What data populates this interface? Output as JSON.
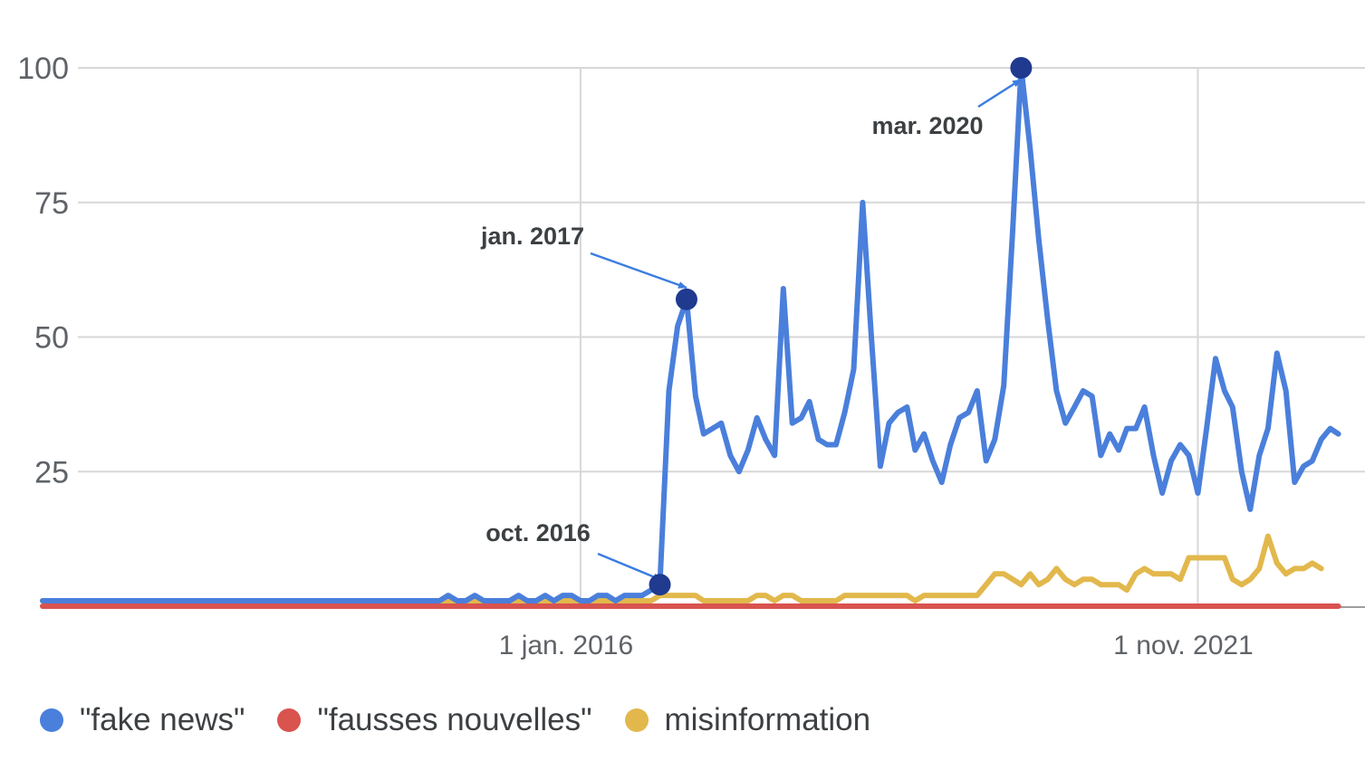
{
  "chart_data": {
    "type": "line",
    "title": "",
    "xlabel": "",
    "ylabel": "",
    "ylim": [
      0,
      100
    ],
    "yticks": [
      25,
      50,
      75,
      100
    ],
    "xlim": [
      "2010-12-01",
      "2023-06-01"
    ],
    "xticks": [
      {
        "date": "2016-01-01",
        "label": "1 jan. 2016"
      },
      {
        "date": "2021-11-01",
        "label": "1 nov. 2021"
      }
    ],
    "grid": true,
    "legend_position": "bottom-left",
    "annotations": [
      {
        "label": "oct. 2016",
        "series": "\"fake news\"",
        "date": "2016-10-01",
        "value": 4
      },
      {
        "label": "jan. 2017",
        "series": "\"fake news\"",
        "date": "2017-01-01",
        "value": 57
      },
      {
        "label": "mar. 2020",
        "series": "\"fake news\"",
        "date": "2020-03-01",
        "value": 100
      }
    ],
    "series": [
      {
        "name": "\"fake news\"",
        "color": "#4a7fdb",
        "points": [
          [
            "2010-12-01",
            1
          ],
          [
            "2014-09-01",
            1
          ],
          [
            "2014-10-01",
            2
          ],
          [
            "2014-11-01",
            1
          ],
          [
            "2014-12-01",
            1
          ],
          [
            "2015-01-01",
            2
          ],
          [
            "2015-02-01",
            1
          ],
          [
            "2015-03-01",
            1
          ],
          [
            "2015-04-01",
            1
          ],
          [
            "2015-05-01",
            1
          ],
          [
            "2015-06-01",
            2
          ],
          [
            "2015-07-01",
            1
          ],
          [
            "2015-08-01",
            1
          ],
          [
            "2015-09-01",
            2
          ],
          [
            "2015-10-01",
            1
          ],
          [
            "2015-11-01",
            2
          ],
          [
            "2015-12-01",
            2
          ],
          [
            "2016-01-01",
            1
          ],
          [
            "2016-02-01",
            1
          ],
          [
            "2016-03-01",
            2
          ],
          [
            "2016-04-01",
            2
          ],
          [
            "2016-05-01",
            1
          ],
          [
            "2016-06-01",
            2
          ],
          [
            "2016-07-01",
            2
          ],
          [
            "2016-08-01",
            2
          ],
          [
            "2016-09-01",
            3
          ],
          [
            "2016-10-01",
            4
          ],
          [
            "2016-11-01",
            40
          ],
          [
            "2016-12-01",
            52
          ],
          [
            "2017-01-01",
            57
          ],
          [
            "2017-02-01",
            39
          ],
          [
            "2017-03-01",
            32
          ],
          [
            "2017-04-01",
            33
          ],
          [
            "2017-05-01",
            34
          ],
          [
            "2017-06-01",
            28
          ],
          [
            "2017-07-01",
            25
          ],
          [
            "2017-08-01",
            29
          ],
          [
            "2017-09-01",
            35
          ],
          [
            "2017-10-01",
            31
          ],
          [
            "2017-11-01",
            28
          ],
          [
            "2017-12-01",
            59
          ],
          [
            "2018-01-01",
            34
          ],
          [
            "2018-02-01",
            35
          ],
          [
            "2018-03-01",
            38
          ],
          [
            "2018-04-01",
            31
          ],
          [
            "2018-05-01",
            30
          ],
          [
            "2018-06-01",
            30
          ],
          [
            "2018-07-01",
            36
          ],
          [
            "2018-08-01",
            44
          ],
          [
            "2018-09-01",
            75
          ],
          [
            "2018-10-01",
            50
          ],
          [
            "2018-11-01",
            26
          ],
          [
            "2018-12-01",
            34
          ],
          [
            "2019-01-01",
            36
          ],
          [
            "2019-02-01",
            37
          ],
          [
            "2019-03-01",
            29
          ],
          [
            "2019-04-01",
            32
          ],
          [
            "2019-05-01",
            27
          ],
          [
            "2019-06-01",
            23
          ],
          [
            "2019-07-01",
            30
          ],
          [
            "2019-08-01",
            35
          ],
          [
            "2019-09-01",
            36
          ],
          [
            "2019-10-01",
            40
          ],
          [
            "2019-11-01",
            27
          ],
          [
            "2019-12-01",
            31
          ],
          [
            "2020-01-01",
            41
          ],
          [
            "2020-02-01",
            70
          ],
          [
            "2020-03-01",
            100
          ],
          [
            "2020-04-01",
            85
          ],
          [
            "2020-05-01",
            68
          ],
          [
            "2020-06-01",
            53
          ],
          [
            "2020-07-01",
            40
          ],
          [
            "2020-08-01",
            34
          ],
          [
            "2020-09-01",
            37
          ],
          [
            "2020-10-01",
            40
          ],
          [
            "2020-11-01",
            39
          ],
          [
            "2020-12-01",
            28
          ],
          [
            "2021-01-01",
            32
          ],
          [
            "2021-02-01",
            29
          ],
          [
            "2021-03-01",
            33
          ],
          [
            "2021-04-01",
            33
          ],
          [
            "2021-05-01",
            37
          ],
          [
            "2021-06-01",
            28
          ],
          [
            "2021-07-01",
            21
          ],
          [
            "2021-08-01",
            27
          ],
          [
            "2021-09-01",
            30
          ],
          [
            "2021-10-01",
            28
          ],
          [
            "2021-11-01",
            21
          ],
          [
            "2021-12-01",
            33
          ],
          [
            "2022-01-01",
            46
          ],
          [
            "2022-02-01",
            40
          ],
          [
            "2022-03-01",
            37
          ],
          [
            "2022-04-01",
            25
          ],
          [
            "2022-05-01",
            18
          ],
          [
            "2022-06-01",
            28
          ],
          [
            "2022-07-01",
            33
          ],
          [
            "2022-08-01",
            47
          ],
          [
            "2022-09-01",
            40
          ],
          [
            "2022-10-01",
            23
          ],
          [
            "2022-11-01",
            26
          ],
          [
            "2022-12-01",
            27
          ],
          [
            "2023-01-01",
            31
          ],
          [
            "2023-02-01",
            33
          ],
          [
            "2023-03-01",
            32
          ]
        ]
      },
      {
        "name": "\"fausses nouvelles\"",
        "color": "#d9534f",
        "points": [
          [
            "2010-12-01",
            0
          ],
          [
            "2023-03-01",
            0
          ]
        ]
      },
      {
        "name": "misinformation",
        "color": "#e2b84c",
        "points": [
          [
            "2010-12-01",
            1
          ],
          [
            "2016-09-01",
            1
          ],
          [
            "2016-10-01",
            2
          ],
          [
            "2017-01-01",
            2
          ],
          [
            "2017-02-01",
            2
          ],
          [
            "2017-03-01",
            1
          ],
          [
            "2017-04-01",
            1
          ],
          [
            "2017-05-01",
            1
          ],
          [
            "2017-06-01",
            1
          ],
          [
            "2017-07-01",
            1
          ],
          [
            "2017-08-01",
            1
          ],
          [
            "2017-09-01",
            2
          ],
          [
            "2017-10-01",
            2
          ],
          [
            "2017-11-01",
            1
          ],
          [
            "2017-12-01",
            2
          ],
          [
            "2018-01-01",
            2
          ],
          [
            "2018-02-01",
            1
          ],
          [
            "2018-03-01",
            1
          ],
          [
            "2018-04-01",
            1
          ],
          [
            "2018-05-01",
            1
          ],
          [
            "2018-06-01",
            1
          ],
          [
            "2018-07-01",
            2
          ],
          [
            "2018-08-01",
            2
          ],
          [
            "2018-09-01",
            2
          ],
          [
            "2018-10-01",
            2
          ],
          [
            "2018-11-01",
            2
          ],
          [
            "2018-12-01",
            2
          ],
          [
            "2019-01-01",
            2
          ],
          [
            "2019-02-01",
            2
          ],
          [
            "2019-03-01",
            1
          ],
          [
            "2019-04-01",
            2
          ],
          [
            "2019-05-01",
            2
          ],
          [
            "2019-06-01",
            2
          ],
          [
            "2019-07-01",
            2
          ],
          [
            "2019-08-01",
            2
          ],
          [
            "2019-09-01",
            2
          ],
          [
            "2019-10-01",
            2
          ],
          [
            "2019-11-01",
            4
          ],
          [
            "2019-12-01",
            6
          ],
          [
            "2020-01-01",
            6
          ],
          [
            "2020-02-01",
            5
          ],
          [
            "2020-03-01",
            4
          ],
          [
            "2020-04-01",
            6
          ],
          [
            "2020-05-01",
            4
          ],
          [
            "2020-06-01",
            5
          ],
          [
            "2020-07-01",
            7
          ],
          [
            "2020-08-01",
            5
          ],
          [
            "2020-09-01",
            4
          ],
          [
            "2020-10-01",
            5
          ],
          [
            "2020-11-01",
            5
          ],
          [
            "2020-12-01",
            4
          ],
          [
            "2021-01-01",
            4
          ],
          [
            "2021-02-01",
            4
          ],
          [
            "2021-03-01",
            3
          ],
          [
            "2021-04-01",
            6
          ],
          [
            "2021-05-01",
            7
          ],
          [
            "2021-06-01",
            6
          ],
          [
            "2021-07-01",
            6
          ],
          [
            "2021-08-01",
            6
          ],
          [
            "2021-09-01",
            5
          ],
          [
            "2021-10-01",
            9
          ],
          [
            "2021-11-01",
            9
          ],
          [
            "2021-12-01",
            9
          ],
          [
            "2022-01-01",
            9
          ],
          [
            "2022-02-01",
            9
          ],
          [
            "2022-03-01",
            5
          ],
          [
            "2022-04-01",
            4
          ],
          [
            "2022-05-01",
            5
          ],
          [
            "2022-06-01",
            7
          ],
          [
            "2022-07-01",
            13
          ],
          [
            "2022-08-01",
            8
          ],
          [
            "2022-09-01",
            6
          ],
          [
            "2022-10-01",
            7
          ],
          [
            "2022-11-01",
            7
          ],
          [
            "2022-12-01",
            8
          ],
          [
            "2023-01-01",
            7
          ]
        ]
      }
    ]
  }
}
